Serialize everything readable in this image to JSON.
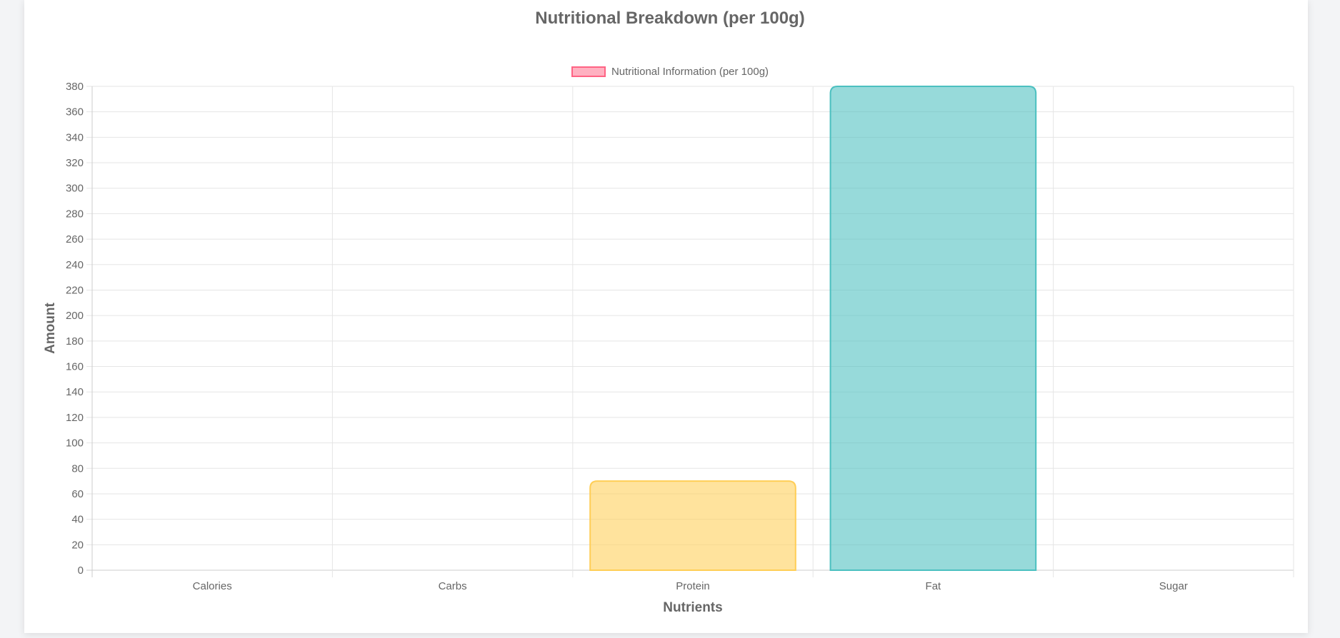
{
  "chart_data": {
    "type": "bar",
    "title": "Nutritional Breakdown (per 100g)",
    "xlabel": "Nutrients",
    "ylabel": "Amount",
    "legend": {
      "placement": "top-center",
      "entries": [
        "Nutritional Information (per 100g)"
      ]
    },
    "categories": [
      "Calories",
      "Carbs",
      "Protein",
      "Fat",
      "Sugar"
    ],
    "series": [
      {
        "name": "Nutritional Information (per 100g)",
        "values": [
          0,
          0,
          70,
          380,
          0
        ]
      }
    ],
    "bar_colors": [
      {
        "fill": "#ff6384",
        "border": "#ff6384"
      },
      {
        "fill": "#36a2eb",
        "border": "#36a2eb"
      },
      {
        "fill": "#ffce56",
        "border": "#ffce56"
      },
      {
        "fill": "#4bc0c0",
        "border": "#4bc0c0"
      },
      {
        "fill": "#9966ff",
        "border": "#9966ff"
      }
    ],
    "ylim": [
      0,
      380
    ],
    "yticks": [
      0,
      20,
      40,
      60,
      80,
      100,
      120,
      140,
      160,
      180,
      200,
      220,
      240,
      260,
      280,
      300,
      320,
      340,
      360,
      380
    ],
    "grid": true
  }
}
